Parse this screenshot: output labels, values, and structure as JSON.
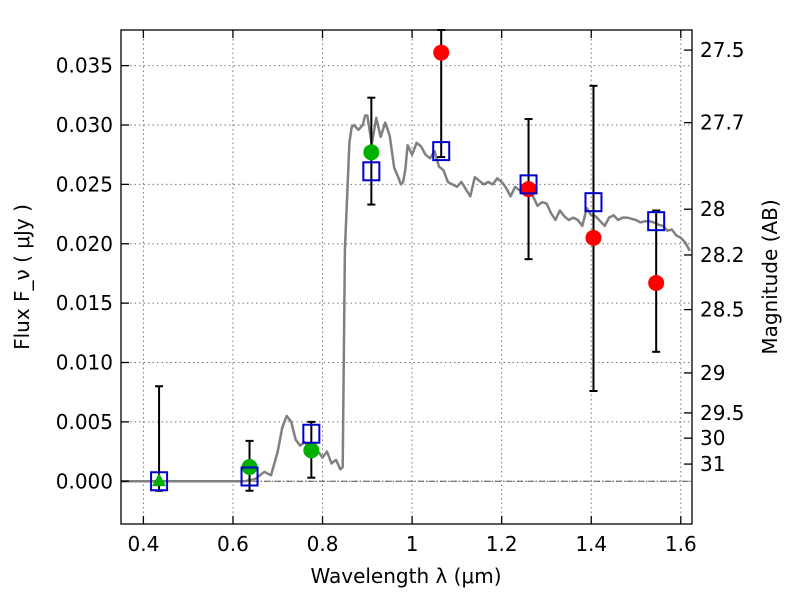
{
  "chart_data": {
    "type": "scatter",
    "title": "",
    "xlabel": "Wavelength  λ (μm)",
    "ylabel": "Flux  F_ν  ( μJy )",
    "ylabel_right": "Magnitude (AB)",
    "xlim": [
      0.35,
      1.625
    ],
    "ylim": [
      -0.0036,
      0.038
    ],
    "grid": true,
    "x_ticks": [
      {
        "value": 0.4,
        "label": "0.4"
      },
      {
        "value": 0.6,
        "label": "0.6"
      },
      {
        "value": 0.8,
        "label": "0.8"
      },
      {
        "value": 1.0,
        "label": "1"
      },
      {
        "value": 1.2,
        "label": "1.2"
      },
      {
        "value": 1.4,
        "label": "1.4"
      },
      {
        "value": 1.6,
        "label": "1.6"
      }
    ],
    "y_ticks": [
      {
        "value": 0.0,
        "label": "0.000"
      },
      {
        "value": 0.005,
        "label": "0.005"
      },
      {
        "value": 0.01,
        "label": "0.010"
      },
      {
        "value": 0.015,
        "label": "0.015"
      },
      {
        "value": 0.02,
        "label": "0.020"
      },
      {
        "value": 0.025,
        "label": "0.025"
      },
      {
        "value": 0.03,
        "label": "0.030"
      },
      {
        "value": 0.035,
        "label": "0.035"
      }
    ],
    "right_ticks": [
      {
        "label": "27.5",
        "mag": 27.5
      },
      {
        "label": "27.7",
        "mag": 27.7
      },
      {
        "label": "28",
        "mag": 28.0
      },
      {
        "label": "28.2",
        "mag": 28.2
      },
      {
        "label": "28.5",
        "mag": 28.5
      },
      {
        "label": "29",
        "mag": 29.0
      },
      {
        "label": "29.5",
        "mag": 29.5
      },
      {
        "label": "30",
        "mag": 30.0
      },
      {
        "label": "31",
        "mag": 31.0
      }
    ],
    "colors": {
      "model": "#808080",
      "green": "#00b000",
      "red": "#ff0000",
      "square": "#0000cc",
      "errorbar": "#000000",
      "zero_line": "#555555",
      "grid": "#777777"
    },
    "model_sed": {
      "x": [
        0.35,
        0.6,
        0.625,
        0.65,
        0.67,
        0.685,
        0.7,
        0.71,
        0.72,
        0.73,
        0.74,
        0.75,
        0.76,
        0.77,
        0.78,
        0.79,
        0.8,
        0.81,
        0.82,
        0.83,
        0.84,
        0.845,
        0.85,
        0.86,
        0.865,
        0.87,
        0.88,
        0.89,
        0.895,
        0.9,
        0.91,
        0.915,
        0.92,
        0.93,
        0.94,
        0.95,
        0.96,
        0.97,
        0.975,
        0.98,
        0.985,
        0.99,
        1.0,
        1.01,
        1.02,
        1.03,
        1.04,
        1.05,
        1.06,
        1.07,
        1.08,
        1.09,
        1.1,
        1.11,
        1.12,
        1.13,
        1.14,
        1.15,
        1.16,
        1.17,
        1.18,
        1.19,
        1.2,
        1.21,
        1.22,
        1.23,
        1.24,
        1.25,
        1.26,
        1.27,
        1.28,
        1.29,
        1.3,
        1.31,
        1.32,
        1.33,
        1.34,
        1.35,
        1.36,
        1.37,
        1.38,
        1.39,
        1.4,
        1.41,
        1.42,
        1.43,
        1.44,
        1.45,
        1.46,
        1.47,
        1.48,
        1.49,
        1.5,
        1.51,
        1.52,
        1.53,
        1.54,
        1.55,
        1.56,
        1.57,
        1.58,
        1.59,
        1.6,
        1.61,
        1.62
      ],
      "y": [
        0.0,
        0.0,
        0.0,
        0.0002,
        0.0008,
        0.0005,
        0.0025,
        0.0045,
        0.0055,
        0.005,
        0.0035,
        0.003,
        0.0033,
        0.0028,
        0.003,
        0.0025,
        0.002,
        0.0025,
        0.0015,
        0.0018,
        0.001,
        0.0012,
        0.0195,
        0.0285,
        0.0298,
        0.03,
        0.0296,
        0.03,
        0.0308,
        0.0308,
        0.0284,
        0.0295,
        0.0306,
        0.029,
        0.0302,
        0.0291,
        0.0264,
        0.0255,
        0.025,
        0.0252,
        0.0263,
        0.0283,
        0.0275,
        0.0285,
        0.0282,
        0.0275,
        0.0272,
        0.0278,
        0.0265,
        0.0262,
        0.0252,
        0.025,
        0.0248,
        0.0252,
        0.0246,
        0.024,
        0.0256,
        0.0253,
        0.025,
        0.0252,
        0.025,
        0.0255,
        0.0252,
        0.0247,
        0.024,
        0.0248,
        0.0245,
        0.0242,
        0.0246,
        0.024,
        0.0232,
        0.0235,
        0.0234,
        0.0226,
        0.022,
        0.0228,
        0.0223,
        0.022,
        0.0222,
        0.022,
        0.0215,
        0.023,
        0.0224,
        0.0223,
        0.0219,
        0.0215,
        0.0222,
        0.0224,
        0.022,
        0.0222,
        0.0222,
        0.0221,
        0.022,
        0.0218,
        0.0219,
        0.0219,
        0.0218,
        0.0216,
        0.0215,
        0.0211,
        0.0212,
        0.0207,
        0.0205,
        0.0201,
        0.0194
      ]
    },
    "errorbars": [
      {
        "x": 0.435,
        "low": -0.0008,
        "high": 0.008
      },
      {
        "x": 0.637,
        "low": -0.0008,
        "high": 0.0034
      },
      {
        "x": 0.775,
        "low": 0.0003,
        "high": 0.005
      },
      {
        "x": 0.909,
        "low": 0.0233,
        "high": 0.0323
      },
      {
        "x": 1.065,
        "low": 0.0273,
        "high": 0.038
      },
      {
        "x": 1.26,
        "low": 0.0187,
        "high": 0.0305
      },
      {
        "x": 1.405,
        "low": 0.0076,
        "high": 0.0333
      },
      {
        "x": 1.545,
        "low": 0.0109,
        "high": 0.0228
      }
    ],
    "green_points": [
      {
        "x": 0.637,
        "y": 0.0012
      },
      {
        "x": 0.775,
        "y": 0.0026
      },
      {
        "x": 0.909,
        "y": 0.0277
      }
    ],
    "green_triangles": [
      {
        "x": 0.435,
        "y": 0.0001
      }
    ],
    "red_points": [
      {
        "x": 1.065,
        "y": 0.0361
      },
      {
        "x": 1.26,
        "y": 0.0246
      },
      {
        "x": 1.405,
        "y": 0.0205
      },
      {
        "x": 1.545,
        "y": 0.0167
      }
    ],
    "model_squares": [
      {
        "x": 0.435,
        "y": 0.0
      },
      {
        "x": 0.637,
        "y": 0.0004
      },
      {
        "x": 0.775,
        "y": 0.004
      },
      {
        "x": 0.909,
        "y": 0.0261
      },
      {
        "x": 1.065,
        "y": 0.0278
      },
      {
        "x": 1.26,
        "y": 0.025
      },
      {
        "x": 1.405,
        "y": 0.0235
      },
      {
        "x": 1.545,
        "y": 0.0219
      }
    ]
  }
}
